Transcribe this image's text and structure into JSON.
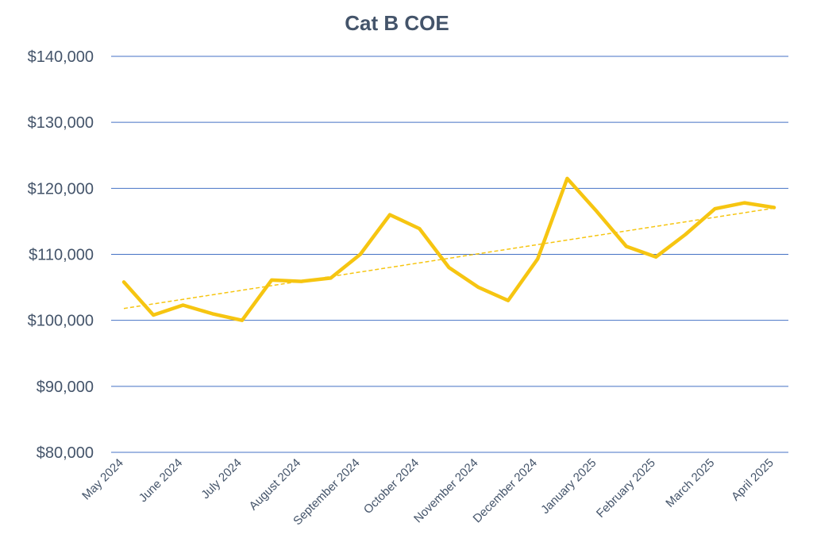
{
  "chart_data": {
    "type": "line",
    "title": "Cat B COE",
    "xlabel": "",
    "ylabel": "",
    "ylim": [
      80000,
      140000
    ],
    "y_ticks": [
      80000,
      90000,
      100000,
      110000,
      120000,
      130000,
      140000
    ],
    "y_tick_labels": [
      "$80,000",
      "$90,000",
      "$100,000",
      "$110,000",
      "$120,000",
      "$130,000",
      "$140,000"
    ],
    "x_tick_labels": [
      "May 2024",
      "June 2024",
      "July 2024",
      "August 2024",
      "September 2024",
      "October 2024",
      "November 2024",
      "December 2024",
      "January 2025",
      "February 2025",
      "March 2025",
      "April 2025"
    ],
    "grid": true,
    "legend": "none",
    "series": [
      {
        "values": [
          105800,
          100800,
          102300,
          101000,
          100000,
          106100,
          105900,
          106400,
          110000,
          116000,
          113900,
          108000,
          105000,
          103000,
          109300,
          121500,
          116500,
          111200,
          109600,
          113000,
          116900,
          117800,
          117100
        ],
        "color": "#f6c511"
      }
    ],
    "trendline": {
      "type": "linear",
      "start": 101800,
      "end": 117000,
      "color": "#f6c511",
      "style": "dashed"
    },
    "colors": {
      "grid": "#4472c4",
      "text": "#44546a",
      "line": "#f6c511"
    }
  }
}
